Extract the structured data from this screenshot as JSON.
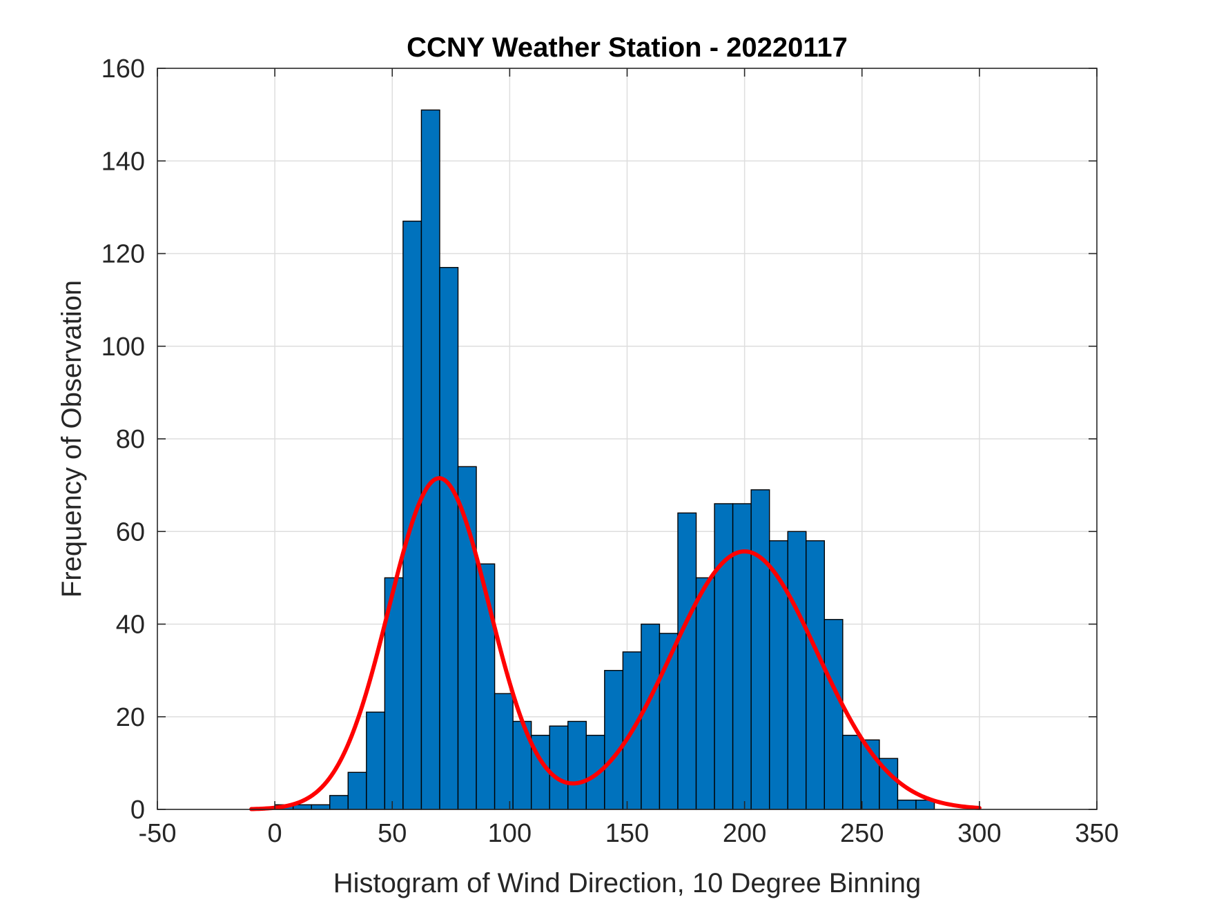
{
  "chart_data": {
    "type": "bar",
    "title": "CCNY Weather Station - 20220117",
    "xlabel": "Histogram of Wind Direction, 10 Degree Binning",
    "ylabel": "Frequency of Observation",
    "xlim": [
      -50,
      350
    ],
    "ylim": [
      0,
      160
    ],
    "xticks": [
      -50,
      0,
      50,
      100,
      150,
      200,
      250,
      300,
      350
    ],
    "yticks": [
      0,
      20,
      40,
      60,
      80,
      100,
      120,
      140,
      160
    ],
    "grid": true,
    "bin_width": 7.8,
    "bins": [
      {
        "start": 0,
        "count": 1
      },
      {
        "start": 7.8,
        "count": 1
      },
      {
        "start": 15.6,
        "count": 1
      },
      {
        "start": 23.4,
        "count": 3
      },
      {
        "start": 31.2,
        "count": 8
      },
      {
        "start": 39.0,
        "count": 21
      },
      {
        "start": 46.8,
        "count": 50
      },
      {
        "start": 54.6,
        "count": 127
      },
      {
        "start": 62.4,
        "count": 151
      },
      {
        "start": 70.2,
        "count": 117
      },
      {
        "start": 78.0,
        "count": 74
      },
      {
        "start": 85.8,
        "count": 53
      },
      {
        "start": 93.6,
        "count": 25
      },
      {
        "start": 101.4,
        "count": 19
      },
      {
        "start": 109.2,
        "count": 16
      },
      {
        "start": 117.0,
        "count": 18
      },
      {
        "start": 124.8,
        "count": 19
      },
      {
        "start": 132.6,
        "count": 16
      },
      {
        "start": 140.4,
        "count": 30
      },
      {
        "start": 148.2,
        "count": 34
      },
      {
        "start": 156.0,
        "count": 40
      },
      {
        "start": 163.8,
        "count": 38
      },
      {
        "start": 171.6,
        "count": 64
      },
      {
        "start": 179.4,
        "count": 50
      },
      {
        "start": 187.2,
        "count": 66
      },
      {
        "start": 195.0,
        "count": 66
      },
      {
        "start": 202.8,
        "count": 69
      },
      {
        "start": 210.6,
        "count": 58
      },
      {
        "start": 218.4,
        "count": 60
      },
      {
        "start": 226.2,
        "count": 58
      },
      {
        "start": 234.0,
        "count": 41
      },
      {
        "start": 241.8,
        "count": 16
      },
      {
        "start": 249.6,
        "count": 15
      },
      {
        "start": 257.4,
        "count": 11
      },
      {
        "start": 265.2,
        "count": 2
      },
      {
        "start": 273.0,
        "count": 2
      }
    ],
    "fit_curve": {
      "type": "bimodal-gaussian",
      "x_range": [
        -10,
        300
      ],
      "components": [
        {
          "mean": 70,
          "sd": 21.5,
          "amplitude": 71.5
        },
        {
          "mean": 200,
          "sd": 31,
          "amplitude": 55.7
        }
      ]
    },
    "colors": {
      "bar_fill": "#0072BD",
      "bar_edge": "#000000",
      "fit_line": "#FF0000",
      "grid": "#DEDEDE",
      "axis": "#262626"
    }
  }
}
